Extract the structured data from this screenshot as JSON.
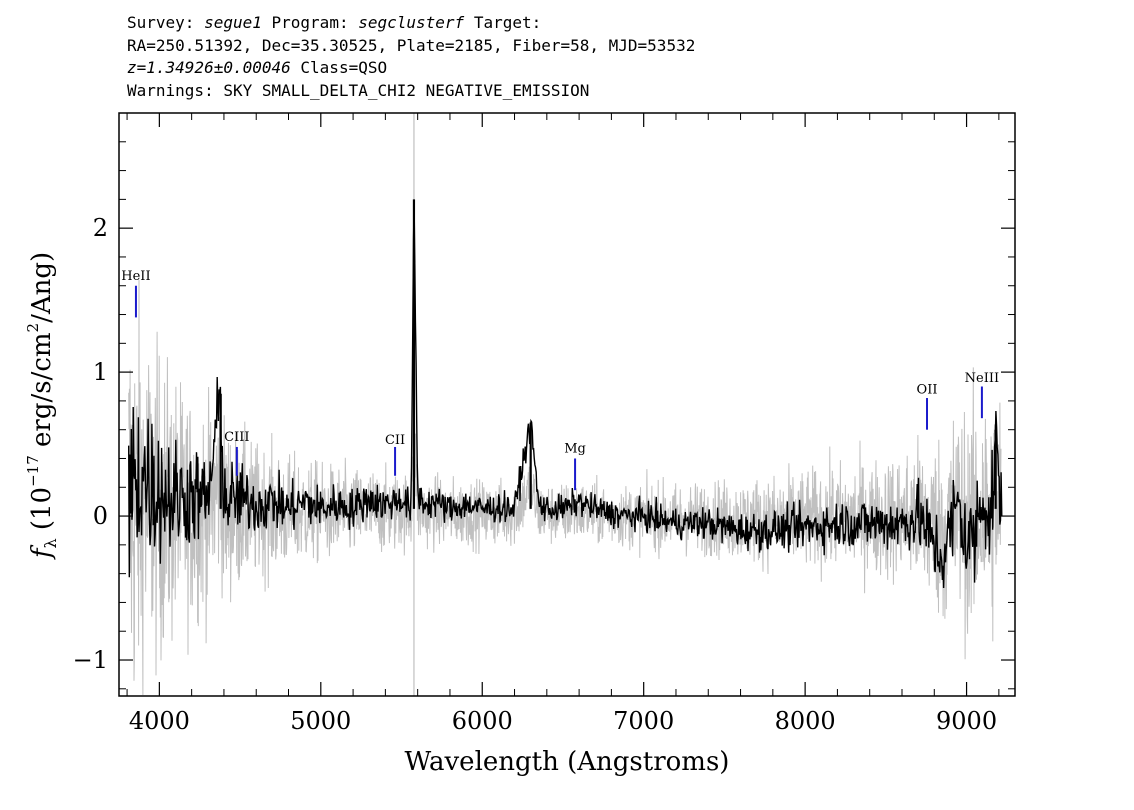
{
  "header": {
    "survey_label": "Survey:",
    "survey": "segue1",
    "program_label": "Program:",
    "program": "segclusterf",
    "target_label": "Target:",
    "line2": "RA=250.51392, Dec=35.30525, Plate=2185, Fiber=58, MJD=53532",
    "redshift": "z=1.34926±0.00046",
    "class": "Class=QSO",
    "warnings": "Warnings: SKY SMALL_DELTA_CHI2 NEGATIVE_EMISSION"
  },
  "chart_data": {
    "type": "line",
    "xlabel": "Wavelength (Angstroms)",
    "ylabel_prefix": "f",
    "ylabel_sub": "λ",
    "ylabel_rest": "(10",
    "ylabel_exp": "−17",
    "ylabel_units": "erg/s/cm",
    "ylabel_units_exp": "2",
    "ylabel_units_end": "/Ang)",
    "xlim": [
      3750,
      9300
    ],
    "ylim": [
      -1.25,
      2.8
    ],
    "x_ticks": [
      4000,
      5000,
      6000,
      7000,
      8000,
      9000
    ],
    "x_tick_labels": [
      "4000",
      "5000",
      "6000",
      "7000",
      "8000",
      "9000"
    ],
    "y_ticks": [
      -1,
      0,
      1,
      2
    ],
    "y_tick_labels": [
      "−1",
      "0",
      "1",
      "2"
    ],
    "series": [
      {
        "role": "flux",
        "color": "#000000",
        "x": [
          3810,
          3850,
          3900,
          3950,
          4000,
          4100,
          4200,
          4300,
          4380,
          4400,
          4500,
          4600,
          4700,
          4800,
          4900,
          5000,
          5100,
          5200,
          5300,
          5400,
          5500,
          5560,
          5577,
          5600,
          5650,
          5700,
          5800,
          5900,
          6000,
          6100,
          6200,
          6300,
          6350,
          6400,
          6500,
          6600,
          6700,
          6800,
          6900,
          7000,
          7200,
          7400,
          7600,
          7800,
          8000,
          8200,
          8400,
          8600,
          8700,
          8800,
          8850,
          8900,
          8950,
          9000,
          9050,
          9100,
          9150,
          9180,
          9200,
          9220
        ],
        "y": [
          0.1,
          0.25,
          0.3,
          0.2,
          0.18,
          0.12,
          0.15,
          0.1,
          0.85,
          0.1,
          0.12,
          0.08,
          0.1,
          0.05,
          0.1,
          0.05,
          0.08,
          0.05,
          0.12,
          0.08,
          0.12,
          0.05,
          2.2,
          0.15,
          0.08,
          0.1,
          0.05,
          0.08,
          0.05,
          0.06,
          0.05,
          0.65,
          0.08,
          0.05,
          0.05,
          0.1,
          0.05,
          0.02,
          0.0,
          0.0,
          -0.05,
          -0.05,
          -0.1,
          -0.1,
          -0.08,
          -0.05,
          -0.05,
          -0.05,
          0.0,
          -0.2,
          -0.3,
          -0.1,
          0.1,
          -0.2,
          -0.15,
          0.2,
          -0.1,
          0.6,
          0.1,
          0.15
        ]
      },
      {
        "role": "error",
        "color": "#c0c0c0",
        "x": [
          3800,
          3900,
          4000,
          4100,
          4200,
          4300,
          4400,
          4500,
          4600,
          4800,
          5000,
          5200,
          5400,
          5600,
          5800,
          6000,
          6200,
          6400,
          6600,
          6800,
          7000,
          7200,
          7400,
          7600,
          7800,
          8000,
          8200,
          8400,
          8600,
          8800,
          8900,
          9000,
          9100,
          9200
        ],
        "y": [
          1.2,
          0.9,
          0.75,
          0.65,
          0.55,
          0.5,
          0.45,
          0.38,
          0.33,
          0.28,
          0.24,
          0.22,
          0.2,
          0.18,
          0.17,
          0.16,
          0.16,
          0.15,
          0.15,
          0.15,
          0.16,
          0.17,
          0.18,
          0.2,
          0.22,
          0.24,
          0.26,
          0.28,
          0.32,
          0.42,
          0.5,
          0.55,
          0.6,
          0.65
        ]
      }
    ],
    "emission_lines": [
      {
        "label": "HeII",
        "x": 3855,
        "y0": 1.38,
        "y1": 1.6,
        "label_y": 1.64
      },
      {
        "label": "CIII",
        "x": 4480,
        "y0": 0.28,
        "y1": 0.48,
        "label_y": 0.52
      },
      {
        "label": "CII",
        "x": 5460,
        "y0": 0.28,
        "y1": 0.48,
        "label_y": 0.5
      },
      {
        "label": "Mg",
        "x": 6575,
        "y0": 0.18,
        "y1": 0.4,
        "label_y": 0.44
      },
      {
        "label": "OII",
        "x": 8755,
        "y0": 0.6,
        "y1": 0.82,
        "label_y": 0.85
      },
      {
        "label": "NeIII",
        "x": 9095,
        "y0": 0.68,
        "y1": 0.9,
        "label_y": 0.93
      }
    ],
    "line_marker_color": "#1a1acc",
    "sky_line_x": 5577
  }
}
